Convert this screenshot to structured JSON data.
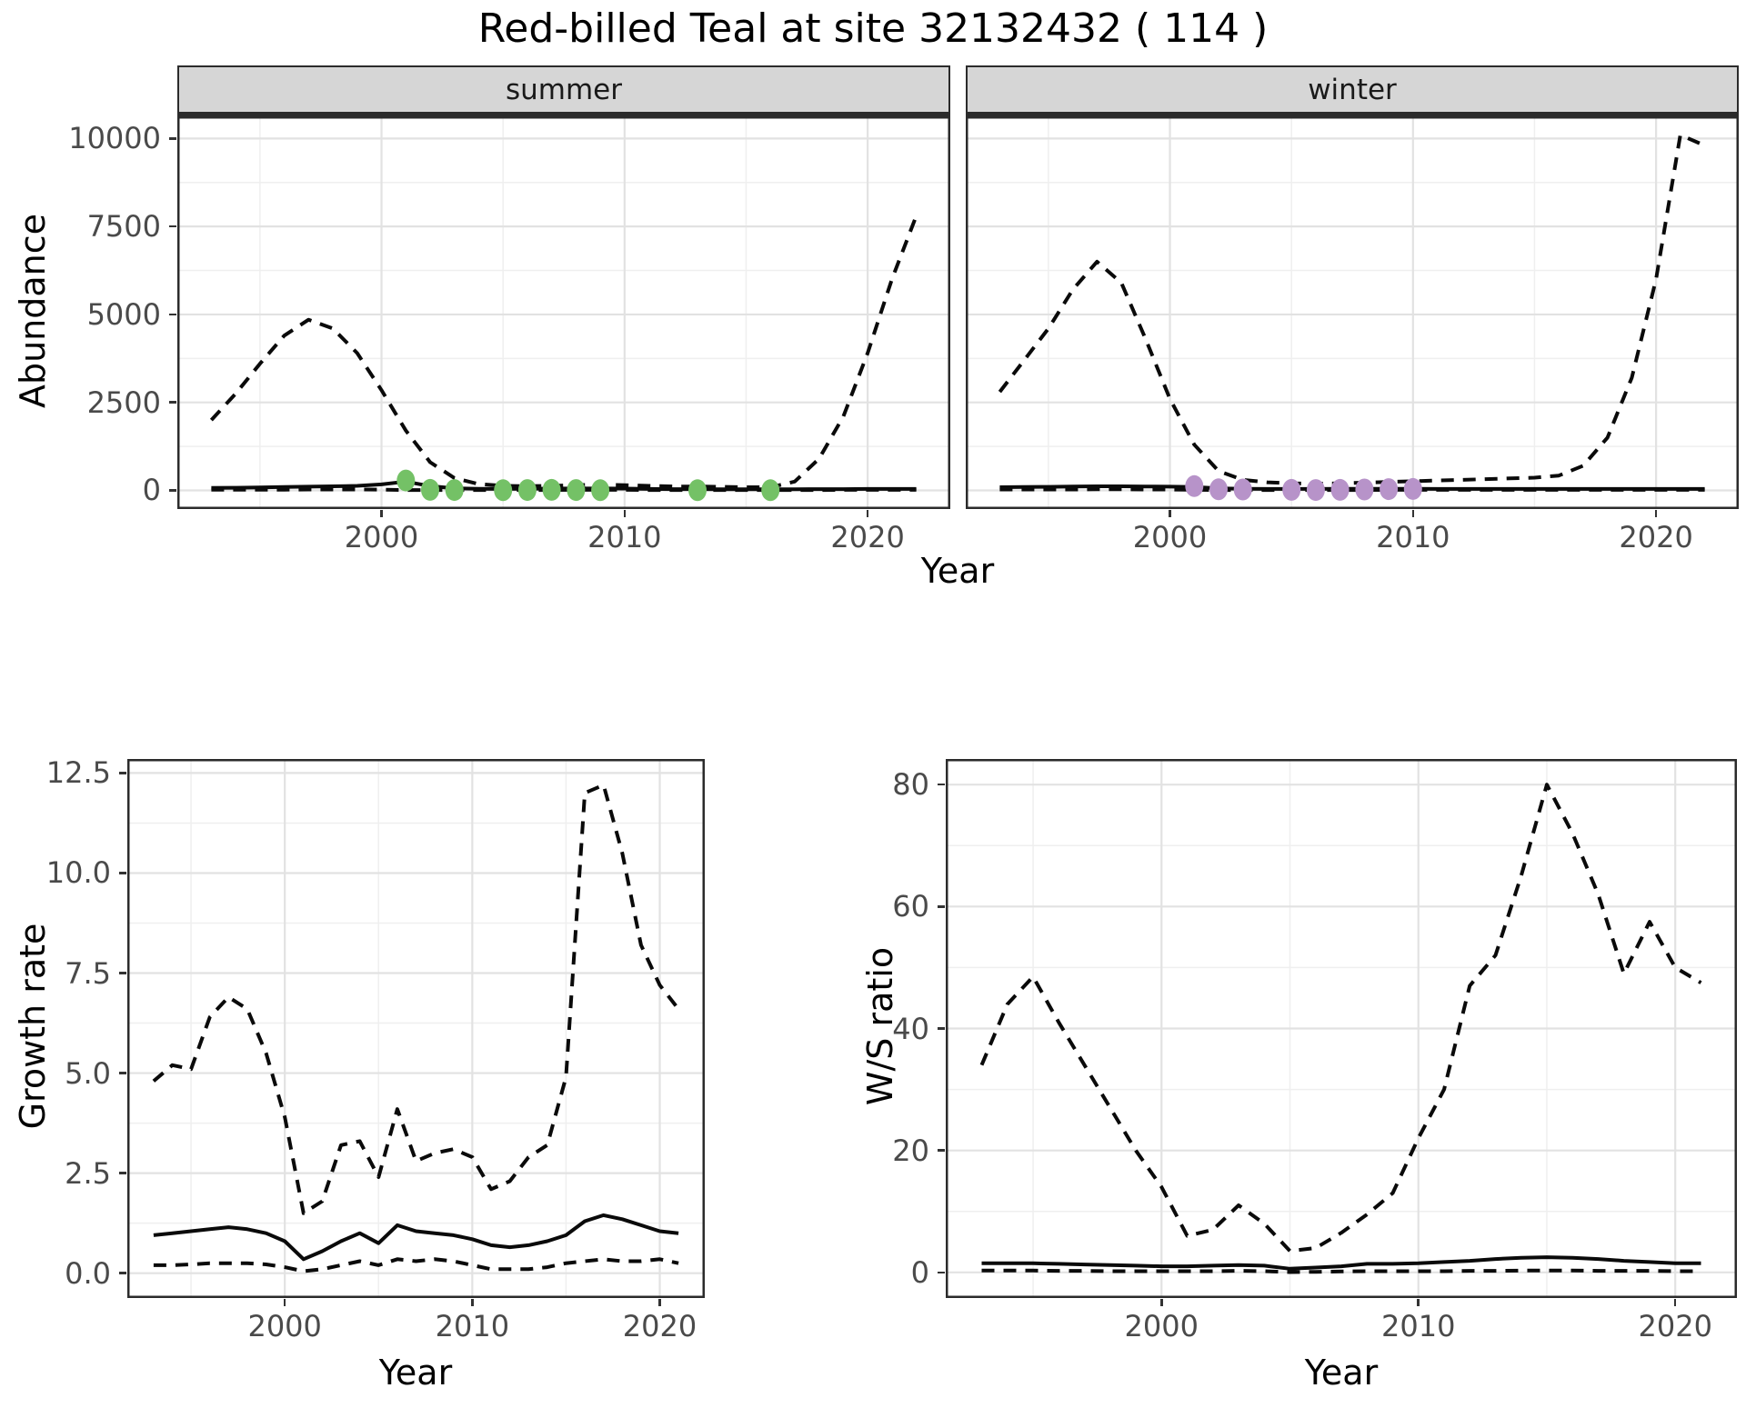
{
  "title": "Red-billed Teal at site 32132432 ( 114 )",
  "facets": {
    "summer": "summer",
    "winter": "winter"
  },
  "axes": {
    "abundance_label": "Abundance",
    "year_label": "Year",
    "growth_label": "Growth rate",
    "ws_label": "W/S ratio"
  },
  "colors": {
    "line": "#0a0a0a",
    "summer_points": "#74c166",
    "winter_points": "#b793c9",
    "strip_bg": "#d6d6d6",
    "grid_major": "#e2e2e2",
    "grid_minor": "#efefef",
    "panel_border": "#2b2b2b",
    "tick_text": "#4a4a4a"
  },
  "chart_data": [
    {
      "name": "abundance-summer",
      "type": "line",
      "facet": "summer",
      "xlabel": "Year",
      "ylabel": "Abundance",
      "xlim": [
        1991.6,
        2023.4
      ],
      "ylim": [
        -530,
        10630
      ],
      "x_ticks": [
        2000,
        2010,
        2020
      ],
      "x_tick_labels": [
        "2000",
        "2010",
        "2020"
      ],
      "x_minor": [
        1995,
        2005,
        2015
      ],
      "y_ticks": [
        0,
        2500,
        5000,
        7500,
        10000
      ],
      "y_tick_labels": [
        "0",
        "2500",
        "5000",
        "7500",
        "10000"
      ],
      "y_minor": [
        1250,
        3750,
        6250,
        8750
      ],
      "grid": true,
      "legend": "none",
      "years": [
        1993,
        1994,
        1995,
        1996,
        1997,
        1998,
        1999,
        2000,
        2001,
        2002,
        2003,
        2004,
        2005,
        2006,
        2007,
        2008,
        2009,
        2010,
        2011,
        2012,
        2013,
        2014,
        2015,
        2016,
        2017,
        2018,
        2019,
        2020,
        2021,
        2022
      ],
      "series": [
        {
          "name": "upper-ci",
          "style": "dashed",
          "values": [
            2000,
            2750,
            3600,
            4400,
            4850,
            4600,
            3900,
            2850,
            1700,
            800,
            350,
            180,
            130,
            120,
            130,
            150,
            160,
            150,
            130,
            110,
            110,
            100,
            90,
            90,
            250,
            900,
            2100,
            3900,
            6000,
            7800
          ]
        },
        {
          "name": "median",
          "style": "solid",
          "values": [
            70,
            75,
            85,
            95,
            105,
            115,
            130,
            170,
            250,
            120,
            60,
            45,
            40,
            45,
            50,
            55,
            55,
            50,
            40,
            35,
            35,
            30,
            30,
            30,
            30,
            35,
            35,
            40,
            40,
            40
          ]
        },
        {
          "name": "lower-ci",
          "style": "dashed",
          "values": [
            20,
            20,
            20,
            20,
            25,
            25,
            25,
            20,
            10,
            10,
            10,
            10,
            10,
            10,
            10,
            15,
            15,
            15,
            10,
            10,
            10,
            10,
            10,
            10,
            10,
            10,
            15,
            15,
            15,
            15
          ]
        }
      ],
      "points": {
        "name": "observed-counts",
        "color": "#74c166",
        "data": [
          [
            2001,
            280
          ],
          [
            2002,
            15
          ],
          [
            2003,
            10
          ],
          [
            2005,
            5
          ],
          [
            2006,
            10
          ],
          [
            2007,
            15
          ],
          [
            2008,
            10
          ],
          [
            2009,
            5
          ],
          [
            2013,
            5
          ],
          [
            2016,
            5
          ]
        ]
      }
    },
    {
      "name": "abundance-winter",
      "type": "line",
      "facet": "winter",
      "xlabel": "Year",
      "ylabel": "Abundance",
      "xlim": [
        1991.6,
        2023.4
      ],
      "ylim": [
        -530,
        10630
      ],
      "x_ticks": [
        2000,
        2010,
        2020
      ],
      "x_tick_labels": [
        "2000",
        "2010",
        "2020"
      ],
      "x_minor": [
        1995,
        2005,
        2015
      ],
      "y_ticks": [
        0,
        2500,
        5000,
        7500,
        10000
      ],
      "y_tick_labels": [
        "0",
        "2500",
        "5000",
        "7500",
        "10000"
      ],
      "y_minor": [
        1250,
        3750,
        6250,
        8750
      ],
      "grid": true,
      "legend": "none",
      "years": [
        1993,
        1994,
        1995,
        1996,
        1997,
        1998,
        1999,
        2000,
        2001,
        2002,
        2003,
        2004,
        2005,
        2006,
        2007,
        2008,
        2009,
        2010,
        2011,
        2012,
        2013,
        2014,
        2015,
        2016,
        2017,
        2018,
        2019,
        2020,
        2021,
        2022
      ],
      "series": [
        {
          "name": "upper-ci",
          "style": "dashed",
          "values": [
            2800,
            3700,
            4600,
            5700,
            6500,
            5900,
            4300,
            2600,
            1300,
            550,
            300,
            230,
            200,
            190,
            200,
            220,
            240,
            260,
            280,
            300,
            320,
            340,
            360,
            420,
            700,
            1500,
            3200,
            6000,
            10100,
            9800
          ]
        },
        {
          "name": "median",
          "style": "solid",
          "values": [
            90,
            95,
            100,
            110,
            115,
            115,
            110,
            105,
            95,
            60,
            45,
            40,
            40,
            40,
            45,
            45,
            45,
            45,
            40,
            40,
            40,
            40,
            40,
            40,
            40,
            40,
            40,
            40,
            40,
            40
          ]
        },
        {
          "name": "lower-ci",
          "style": "dashed",
          "values": [
            25,
            25,
            25,
            25,
            30,
            30,
            25,
            25,
            15,
            10,
            10,
            10,
            10,
            10,
            10,
            10,
            15,
            15,
            15,
            15,
            15,
            15,
            15,
            15,
            15,
            15,
            15,
            15,
            15,
            15
          ]
        }
      ],
      "points": {
        "name": "observed-counts",
        "color": "#b793c9",
        "data": [
          [
            2001,
            120
          ],
          [
            2002,
            30
          ],
          [
            2003,
            25
          ],
          [
            2005,
            15
          ],
          [
            2006,
            10
          ],
          [
            2007,
            15
          ],
          [
            2008,
            25
          ],
          [
            2009,
            35
          ],
          [
            2010,
            40
          ]
        ]
      }
    },
    {
      "name": "growth",
      "type": "line",
      "facet": null,
      "xlabel": "Year",
      "ylabel": "Growth rate",
      "xlim": [
        1991.6,
        2022.4
      ],
      "ylim": [
        -0.62,
        12.85
      ],
      "x_ticks": [
        2000,
        2010,
        2020
      ],
      "x_tick_labels": [
        "2000",
        "2010",
        "2020"
      ],
      "x_minor": [
        1995,
        2005,
        2015
      ],
      "y_ticks": [
        0,
        2.5,
        5,
        7.5,
        10,
        12.5
      ],
      "y_tick_labels": [
        "0.0",
        "2.5",
        "5.0",
        "7.5",
        "10.0",
        "12.5"
      ],
      "y_minor": [
        1.25,
        3.75,
        6.25,
        8.75,
        11.25
      ],
      "grid": true,
      "legend": "none",
      "years": [
        1993,
        1994,
        1995,
        1996,
        1997,
        1998,
        1999,
        2000,
        2001,
        2002,
        2003,
        2004,
        2005,
        2006,
        2007,
        2008,
        2009,
        2010,
        2011,
        2012,
        2013,
        2014,
        2015,
        2016,
        2017,
        2018,
        2019,
        2020,
        2021
      ],
      "series": [
        {
          "name": "upper-ci",
          "style": "dashed",
          "values": [
            4.8,
            5.2,
            5.1,
            6.4,
            6.9,
            6.6,
            5.5,
            3.9,
            1.5,
            1.8,
            3.2,
            3.3,
            2.4,
            4.1,
            2.8,
            3.0,
            3.1,
            2.9,
            2.1,
            2.3,
            2.9,
            3.2,
            4.9,
            12.0,
            12.2,
            10.5,
            8.2,
            7.2,
            6.6
          ]
        },
        {
          "name": "median",
          "style": "solid",
          "values": [
            0.95,
            1.0,
            1.05,
            1.1,
            1.15,
            1.1,
            1.0,
            0.8,
            0.35,
            0.55,
            0.8,
            1.0,
            0.75,
            1.2,
            1.05,
            1.0,
            0.95,
            0.85,
            0.7,
            0.65,
            0.7,
            0.8,
            0.95,
            1.3,
            1.45,
            1.35,
            1.2,
            1.05,
            1.0
          ]
        },
        {
          "name": "lower-ci",
          "style": "dashed",
          "values": [
            0.2,
            0.2,
            0.22,
            0.25,
            0.25,
            0.25,
            0.22,
            0.15,
            0.05,
            0.1,
            0.2,
            0.3,
            0.2,
            0.35,
            0.3,
            0.35,
            0.3,
            0.2,
            0.1,
            0.1,
            0.1,
            0.15,
            0.25,
            0.3,
            0.35,
            0.3,
            0.3,
            0.35,
            0.25
          ]
        }
      ],
      "points": null
    },
    {
      "name": "ws",
      "type": "line",
      "facet": null,
      "xlabel": "Year",
      "ylabel": "W/S ratio",
      "xlim": [
        1991.6,
        2022.4
      ],
      "ylim": [
        -4.2,
        84.2
      ],
      "x_ticks": [
        2000,
        2010,
        2020
      ],
      "x_tick_labels": [
        "2000",
        "2010",
        "2020"
      ],
      "x_minor": [
        1995,
        2005,
        2015
      ],
      "y_ticks": [
        0,
        20,
        40,
        60,
        80
      ],
      "y_tick_labels": [
        "0",
        "20",
        "40",
        "60",
        "80"
      ],
      "y_minor": [
        10,
        30,
        50,
        70
      ],
      "grid": true,
      "legend": "none",
      "years": [
        1993,
        1994,
        1995,
        1996,
        1997,
        1998,
        1999,
        2000,
        2001,
        2002,
        2003,
        2004,
        2005,
        2006,
        2007,
        2008,
        2009,
        2010,
        2011,
        2012,
        2013,
        2014,
        2015,
        2016,
        2017,
        2018,
        2019,
        2020,
        2021
      ],
      "series": [
        {
          "name": "upper-ci",
          "style": "dashed",
          "values": [
            34,
            44,
            48.5,
            41,
            34,
            27,
            20,
            14,
            6,
            7,
            11,
            8,
            3.5,
            4,
            6.5,
            9.5,
            13,
            22,
            30,
            47,
            52,
            65,
            80,
            72,
            62,
            49,
            57.5,
            50,
            47.5
          ]
        },
        {
          "name": "median",
          "style": "solid",
          "values": [
            1.5,
            1.5,
            1.5,
            1.4,
            1.3,
            1.2,
            1.1,
            1.0,
            1.0,
            1.1,
            1.2,
            1.1,
            0.6,
            0.8,
            1.0,
            1.4,
            1.4,
            1.5,
            1.7,
            1.9,
            2.2,
            2.4,
            2.5,
            2.4,
            2.2,
            1.9,
            1.7,
            1.5,
            1.5
          ]
        },
        {
          "name": "lower-ci",
          "style": "dashed",
          "values": [
            0.3,
            0.3,
            0.3,
            0.25,
            0.25,
            0.2,
            0.2,
            0.2,
            0.2,
            0.2,
            0.25,
            0.2,
            0.05,
            0.1,
            0.15,
            0.2,
            0.2,
            0.2,
            0.2,
            0.25,
            0.25,
            0.3,
            0.3,
            0.3,
            0.25,
            0.25,
            0.25,
            0.2,
            0.2
          ]
        }
      ],
      "points": null
    }
  ]
}
